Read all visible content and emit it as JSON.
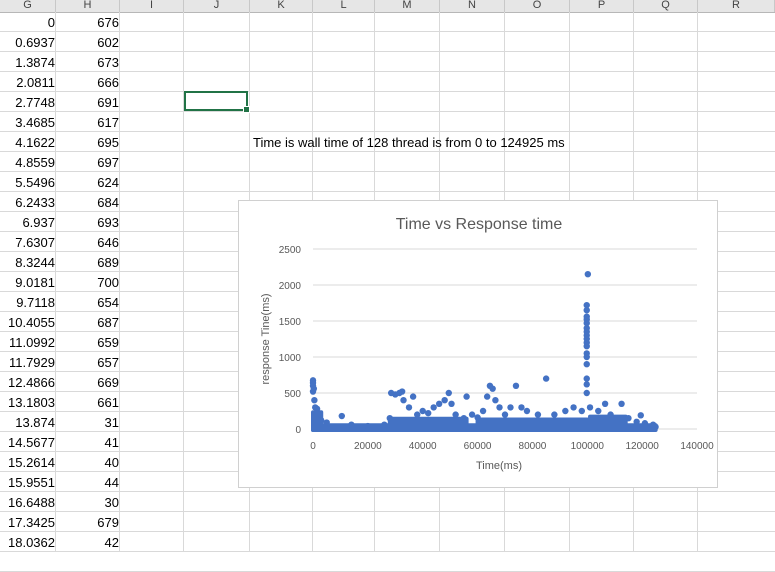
{
  "spreadsheet": {
    "column_headers": [
      "G",
      "H",
      "I",
      "J",
      "K",
      "L",
      "M",
      "N",
      "O",
      "P",
      "Q",
      "R"
    ],
    "col_g": [
      "0",
      "0.6937",
      "1.3874",
      "2.0811",
      "2.7748",
      "3.4685",
      "4.1622",
      "4.8559",
      "5.5496",
      "6.2433",
      "6.937",
      "7.6307",
      "8.3244",
      "9.0181",
      "9.7118",
      "10.4055",
      "11.0992",
      "11.7929",
      "12.4866",
      "13.1803",
      "13.874",
      "14.5677",
      "15.2614",
      "15.9551",
      "16.6488",
      "17.3425",
      "18.0362"
    ],
    "col_h": [
      "676",
      "602",
      "673",
      "666",
      "691",
      "617",
      "695",
      "697",
      "624",
      "684",
      "693",
      "646",
      "689",
      "700",
      "654",
      "687",
      "659",
      "657",
      "669",
      "661",
      "31",
      "41",
      "40",
      "44",
      "30",
      "679",
      "42"
    ],
    "note_text": "Time is wall time of 128 thread is from 0 to 124925 ms",
    "selection_color": "#217346"
  },
  "chart_data": {
    "type": "scatter",
    "title": "Time vs Response time",
    "xlabel": "Time(ms)",
    "ylabel": "response Tine(ms)",
    "xlim": [
      0,
      140000
    ],
    "ylim": [
      0,
      2500
    ],
    "x_ticks": [
      "0",
      "20000",
      "40000",
      "60000",
      "80000",
      "100000",
      "120000",
      "140000"
    ],
    "y_ticks": [
      "0",
      "500",
      "1000",
      "1500",
      "2000",
      "2500"
    ],
    "grid": true,
    "legend": "none",
    "series_color": "#4472c4",
    "series": [
      {
        "points": [
          [
            0,
            676
          ],
          [
            0,
            640
          ],
          [
            0,
            600
          ],
          [
            300,
            560
          ],
          [
            0,
            520
          ],
          [
            500,
            400
          ],
          [
            800,
            300
          ],
          [
            1500,
            280
          ],
          [
            2000,
            200
          ],
          [
            1000,
            150
          ],
          [
            3000,
            120
          ],
          [
            5000,
            90
          ],
          [
            10500,
            180
          ],
          [
            14000,
            60
          ],
          [
            20000,
            40
          ],
          [
            26000,
            60
          ],
          [
            28000,
            150
          ],
          [
            28500,
            500
          ],
          [
            30000,
            480
          ],
          [
            31500,
            500
          ],
          [
            32500,
            520
          ],
          [
            33000,
            400
          ],
          [
            35000,
            300
          ],
          [
            36500,
            450
          ],
          [
            38000,
            200
          ],
          [
            40000,
            250
          ],
          [
            42000,
            220
          ],
          [
            44000,
            300
          ],
          [
            46000,
            350
          ],
          [
            48000,
            400
          ],
          [
            49500,
            500
          ],
          [
            50500,
            350
          ],
          [
            52000,
            200
          ],
          [
            55000,
            150
          ],
          [
            56000,
            450
          ],
          [
            58000,
            200
          ],
          [
            60000,
            160
          ],
          [
            62000,
            250
          ],
          [
            63500,
            450
          ],
          [
            64500,
            600
          ],
          [
            65500,
            560
          ],
          [
            66500,
            400
          ],
          [
            68000,
            300
          ],
          [
            70000,
            200
          ],
          [
            72000,
            300
          ],
          [
            74000,
            600
          ],
          [
            76000,
            300
          ],
          [
            78000,
            250
          ],
          [
            82000,
            200
          ],
          [
            85000,
            700
          ],
          [
            88000,
            200
          ],
          [
            92000,
            250
          ],
          [
            95000,
            300
          ],
          [
            98000,
            250
          ],
          [
            99800,
            500
          ],
          [
            99800,
            620
          ],
          [
            99800,
            700
          ],
          [
            99800,
            900
          ],
          [
            99800,
            1000
          ],
          [
            99800,
            1050
          ],
          [
            99800,
            1150
          ],
          [
            99800,
            1200
          ],
          [
            99800,
            1250
          ],
          [
            99800,
            1300
          ],
          [
            99800,
            1350
          ],
          [
            99800,
            1400
          ],
          [
            99800,
            1470
          ],
          [
            99800,
            1520
          ],
          [
            99800,
            1560
          ],
          [
            99800,
            1650
          ],
          [
            99800,
            1720
          ],
          [
            100200,
            2150
          ],
          [
            101000,
            300
          ],
          [
            104000,
            250
          ],
          [
            106500,
            350
          ],
          [
            108500,
            200
          ],
          [
            110000,
            150
          ],
          [
            112500,
            350
          ],
          [
            115000,
            150
          ],
          [
            118000,
            100
          ],
          [
            119500,
            190
          ],
          [
            121000,
            80
          ],
          [
            124000,
            60
          ],
          [
            124900,
            30
          ]
        ],
        "bands": [
          [
            0,
            124925,
            0,
            80
          ],
          [
            28000,
            56000,
            0,
            170
          ],
          [
            60000,
            100000,
            0,
            160
          ],
          [
            101000,
            114000,
            0,
            200
          ],
          [
            0,
            3000,
            0,
            260
          ]
        ]
      }
    ]
  }
}
